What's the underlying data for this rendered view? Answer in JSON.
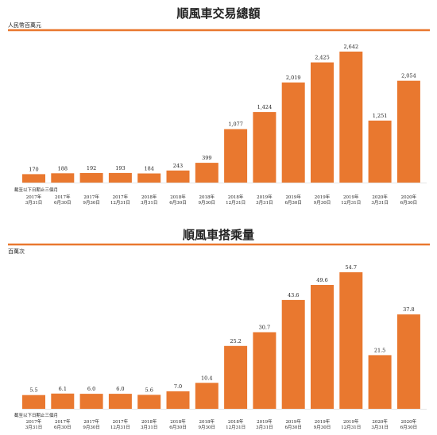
{
  "colors": {
    "bar": "#e9782f",
    "rule": "#e9782f",
    "text": "#222222"
  },
  "chart_data": [
    {
      "type": "bar",
      "title": "順風車交易總額",
      "ylabel": "人民幣百萬元",
      "period_label": "截至以下日期止三個月",
      "categories": [
        [
          "2017年",
          "3月31日"
        ],
        [
          "2017年",
          "6月30日"
        ],
        [
          "2017年",
          "9月30日"
        ],
        [
          "2017年",
          "12月31日"
        ],
        [
          "2018年",
          "3月31日"
        ],
        [
          "2018年",
          "6月30日"
        ],
        [
          "2018年",
          "9月30日"
        ],
        [
          "2018年",
          "12月31日"
        ],
        [
          "2019年",
          "3月31日"
        ],
        [
          "2019年",
          "6月30日"
        ],
        [
          "2019年",
          "9月30日"
        ],
        [
          "2019年",
          "12月31日"
        ],
        [
          "2020年",
          "3月31日"
        ],
        [
          "2020年",
          "6月30日"
        ]
      ],
      "values": [
        170,
        188,
        192,
        193,
        184,
        243,
        399,
        1077,
        1424,
        2019,
        2425,
        2642,
        1251,
        2054
      ],
      "value_labels": [
        "170",
        "188",
        "192",
        "193",
        "184",
        "243",
        "399",
        "1,077",
        "1,424",
        "2,019",
        "2,425",
        "2,642",
        "1,251",
        "2,054"
      ],
      "ylim": [
        0,
        2642
      ],
      "grid": false,
      "legend": "none"
    },
    {
      "type": "bar",
      "title": "順風車搭乘量",
      "ylabel": "百萬次",
      "period_label": "截至以下日期止三個月",
      "categories": [
        [
          "2017年",
          "3月31日"
        ],
        [
          "2017年",
          "6月30日"
        ],
        [
          "2017年",
          "9月30日"
        ],
        [
          "2017年",
          "12月31日"
        ],
        [
          "2018年",
          "3月31日"
        ],
        [
          "2018年",
          "6月30日"
        ],
        [
          "2018年",
          "9月30日"
        ],
        [
          "2018年",
          "12月31日"
        ],
        [
          "2019年",
          "3月31日"
        ],
        [
          "2019年",
          "6月30日"
        ],
        [
          "2019年",
          "9月30日"
        ],
        [
          "2019年",
          "12月31日"
        ],
        [
          "2020年",
          "3月31日"
        ],
        [
          "2020年",
          "6月30日"
        ]
      ],
      "values": [
        5.5,
        6.1,
        6.0,
        6.0,
        5.6,
        7.0,
        10.4,
        25.2,
        30.7,
        43.6,
        49.6,
        54.7,
        21.5,
        37.8
      ],
      "value_labels": [
        "5.5",
        "6.1",
        "6.0",
        "6.0",
        "5.6",
        "7.0",
        "10.4",
        "25.2",
        "30.7",
        "43.6",
        "49.6",
        "54.7",
        "21.5",
        "37.8"
      ],
      "ylim": [
        0,
        54.7
      ],
      "grid": false,
      "legend": "none"
    }
  ]
}
